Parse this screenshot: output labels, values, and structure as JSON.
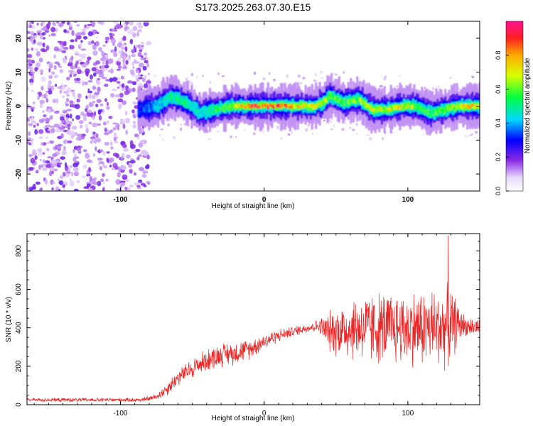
{
  "title": "S173.2025.263.07.30.E15",
  "colors": {
    "snr_line": "#ee2222",
    "frame": "#000000",
    "background": "#ffffff"
  },
  "chart_data": [
    {
      "type": "heatmap",
      "title": "S173.2025.263.07.30.E15",
      "xlabel": "Height of straight line (km)",
      "ylabel": "Frequency (Hz)",
      "xlim": [
        -165,
        150
      ],
      "ylim": [
        -25,
        25
      ],
      "xticks": [
        -100,
        0,
        100
      ],
      "xtick_labels": [
        "-100",
        "0",
        "100"
      ],
      "yticks": [
        -20,
        -10,
        0,
        10,
        20
      ],
      "ytick_labels": [
        "-20",
        "-10",
        "0",
        "10",
        "20"
      ],
      "colorbar": {
        "label": "Normalized spectral amplitude",
        "range": [
          0,
          1
        ],
        "ticks": [
          0.0,
          0.2,
          0.4,
          0.6,
          0.8
        ],
        "tick_labels": [
          "0.0",
          "0.2",
          "0.4",
          "0.6",
          "0.8"
        ]
      },
      "noise_region_x": [
        -165,
        -80
      ],
      "signal_band": {
        "x": [
          -88,
          -75,
          -65,
          -55,
          -45,
          -35,
          -25,
          -15,
          -5,
          5,
          15,
          25,
          35,
          40,
          45,
          55,
          65,
          75,
          85,
          95,
          105,
          115,
          125,
          135,
          150
        ],
        "center_frequency": [
          -1,
          0,
          3,
          1,
          -2,
          -1,
          0,
          0,
          0,
          0,
          0,
          0,
          0,
          1,
          3,
          1,
          2,
          -1,
          -1,
          0,
          0,
          -2,
          -1,
          0,
          0
        ],
        "peak_amplitude": [
          0.3,
          0.4,
          0.5,
          0.5,
          0.45,
          0.5,
          0.6,
          0.8,
          0.85,
          0.9,
          0.8,
          0.7,
          0.75,
          0.7,
          0.6,
          0.55,
          0.6,
          0.7,
          0.65,
          0.7,
          0.6,
          0.55,
          0.6,
          0.7,
          0.75
        ]
      }
    },
    {
      "type": "line",
      "title": "",
      "xlabel": "Height of straight line (km)",
      "ylabel": "SNR (10 * v/v)",
      "xlim": [
        -165,
        150
      ],
      "ylim": [
        0,
        890
      ],
      "xticks": [
        -100,
        0,
        100
      ],
      "xtick_labels": [
        "-100",
        "0",
        "100"
      ],
      "yticks": [
        0,
        200,
        400,
        600,
        800
      ],
      "ytick_labels": [
        "0",
        "200",
        "400",
        "600",
        "800"
      ],
      "series": [
        {
          "name": "SNR",
          "x": [
            -165,
            -140,
            -120,
            -100,
            -85,
            -75,
            -68,
            -60,
            -50,
            -40,
            -30,
            -20,
            -10,
            0,
            10,
            20,
            30,
            38,
            45,
            55,
            65,
            75,
            85,
            95,
            105,
            115,
            125,
            130,
            135,
            140,
            150
          ],
          "mean": [
            25,
            25,
            25,
            25,
            25,
            40,
            80,
            140,
            190,
            230,
            260,
            270,
            290,
            330,
            360,
            380,
            400,
            410,
            380,
            390,
            400,
            400,
            400,
            400,
            400,
            400,
            400,
            410,
            420,
            410,
            400
          ],
          "spread": [
            10,
            12,
            12,
            12,
            12,
            20,
            40,
            50,
            60,
            70,
            70,
            70,
            60,
            50,
            40,
            30,
            30,
            40,
            120,
            180,
            200,
            220,
            220,
            220,
            230,
            240,
            240,
            230,
            120,
            60,
            50
          ],
          "peak": {
            "x": 128,
            "y": 880
          }
        }
      ]
    }
  ]
}
